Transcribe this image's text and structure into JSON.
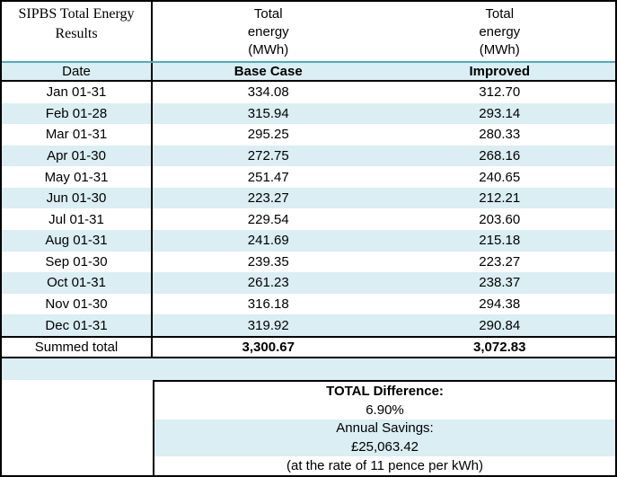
{
  "table": {
    "corner_title": "SIPBS Total Energy Results",
    "value_header": "Total\nenergy\n(MWh)",
    "columns": {
      "date": "Date",
      "base": "Base Case",
      "improved": "Improved"
    },
    "rows": [
      {
        "date": "Jan 01-31",
        "base": "334.08",
        "improved": "312.70"
      },
      {
        "date": "Feb 01-28",
        "base": "315.94",
        "improved": "293.14"
      },
      {
        "date": "Mar 01-31",
        "base": "295.25",
        "improved": "280.33"
      },
      {
        "date": "Apr 01-30",
        "base": "272.75",
        "improved": "268.16"
      },
      {
        "date": "May 01-31",
        "base": "251.47",
        "improved": "240.65"
      },
      {
        "date": "Jun 01-30",
        "base": "223.27",
        "improved": "212.21"
      },
      {
        "date": "Jul 01-31",
        "base": "229.54",
        "improved": "203.60"
      },
      {
        "date": "Aug 01-31",
        "base": "241.69",
        "improved": "215.18"
      },
      {
        "date": "Sep 01-30",
        "base": "239.35",
        "improved": "223.27"
      },
      {
        "date": "Oct 01-31",
        "base": "261.23",
        "improved": "238.37"
      },
      {
        "date": "Nov 01-30",
        "base": "316.18",
        "improved": "294.38"
      },
      {
        "date": "Dec 01-31",
        "base": "319.92",
        "improved": "290.84"
      }
    ],
    "total": {
      "label": "Summed total",
      "base": "3,300.67",
      "improved": "3,072.83"
    }
  },
  "summary": {
    "difference_label": "TOTAL Difference:",
    "difference_value": "6.90%",
    "savings_label": "Annual Savings:",
    "savings_value": "£25,063.42",
    "rate_note": "(at the rate of 11 pence per kWh)"
  },
  "colors": {
    "band_blue": "#daeef3",
    "teal_accent_border": "#4bacc6",
    "grid_border": "#000000"
  }
}
